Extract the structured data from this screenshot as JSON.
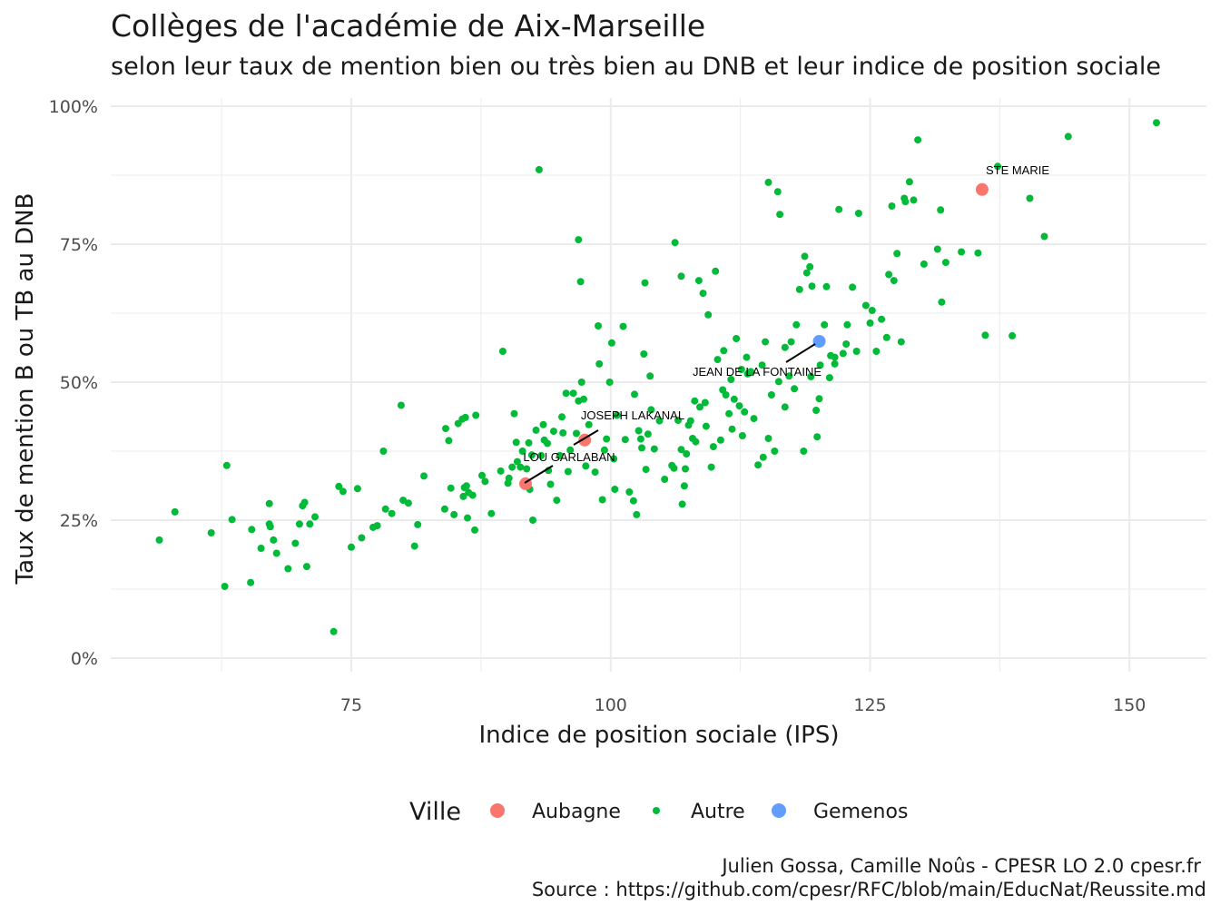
{
  "chart_data": {
    "type": "scatter",
    "title": "Collèges de l'académie de Aix-Marseille",
    "subtitle": "selon leur taux de mention bien ou très bien au DNB et leur indice de position sociale",
    "xlabel": "Indice de position sociale (IPS)",
    "ylabel": "Taux de mention B ou TB au DNB",
    "xlim": [
      52,
      160
    ],
    "ylim": [
      -0.03,
      1.03
    ],
    "x_ticks": [
      75,
      100,
      125,
      150
    ],
    "x_tick_labels": [
      "75",
      "100",
      "125",
      "150"
    ],
    "y_ticks": [
      0,
      0.25,
      0.5,
      0.75,
      1.0
    ],
    "y_tick_labels": [
      "0%",
      "25%",
      "50%",
      "75%",
      "100%"
    ],
    "grid": true,
    "legend_title": "Ville",
    "legend_position": "bottom",
    "caption_lines": [
      "Julien Gossa, Camille Noûs - CPESR LO 2.0 cpesr.fr",
      "Source : https://github.com/cpesr/RFC/blob/main/EducNat/Reussite.md"
    ],
    "series": [
      {
        "name": "Aubagne",
        "color": "#F8766D",
        "points": [
          [
            91.8,
            0.316
          ],
          [
            97.5,
            0.395
          ],
          [
            135.8,
            0.849
          ]
        ]
      },
      {
        "name": "Autre",
        "color": "#00BA38",
        "points": [
          [
            56.5,
            0.214
          ],
          [
            58,
            0.265
          ],
          [
            61.5,
            0.227
          ],
          [
            62.8,
            0.13
          ],
          [
            63,
            0.349
          ],
          [
            63.5,
            0.251
          ],
          [
            65.3,
            0.137
          ],
          [
            65.4,
            0.233
          ],
          [
            66.3,
            0.199
          ],
          [
            67.1,
            0.243
          ],
          [
            67.1,
            0.28
          ],
          [
            67.2,
            0.238
          ],
          [
            67.5,
            0.214
          ],
          [
            67.8,
            0.19
          ],
          [
            68.9,
            0.162
          ],
          [
            69.6,
            0.208
          ],
          [
            70,
            0.243
          ],
          [
            70.3,
            0.276
          ],
          [
            70.5,
            0.282
          ],
          [
            70.7,
            0.166
          ],
          [
            71,
            0.243
          ],
          [
            71.5,
            0.256
          ],
          [
            73.3,
            0.048
          ],
          [
            73.8,
            0.311
          ],
          [
            74.2,
            0.302
          ],
          [
            75,
            0.201
          ],
          [
            75.6,
            0.307
          ],
          [
            76,
            0.218
          ],
          [
            77.1,
            0.237
          ],
          [
            77.5,
            0.24
          ],
          [
            78.1,
            0.375
          ],
          [
            78.3,
            0.27
          ],
          [
            78.9,
            0.262
          ],
          [
            79.8,
            0.458
          ],
          [
            80,
            0.286
          ],
          [
            80.5,
            0.281
          ],
          [
            81.1,
            0.203
          ],
          [
            81.4,
            0.242
          ],
          [
            82,
            0.33
          ],
          [
            84,
            0.27
          ],
          [
            84.1,
            0.416
          ],
          [
            84.4,
            0.394
          ],
          [
            84.6,
            0.308
          ],
          [
            84.9,
            0.26
          ],
          [
            85.3,
            0.425
          ],
          [
            85.7,
            0.433
          ],
          [
            85.8,
            0.293
          ],
          [
            85.9,
            0.309
          ],
          [
            86,
            0.436
          ],
          [
            86.1,
            0.312
          ],
          [
            86.2,
            0.254
          ],
          [
            86.3,
            0.3
          ],
          [
            86.7,
            0.295
          ],
          [
            86.9,
            0.232
          ],
          [
            87,
            0.44
          ],
          [
            87.6,
            0.331
          ],
          [
            87.9,
            0.32
          ],
          [
            88.5,
            0.262
          ],
          [
            89.4,
            0.339
          ],
          [
            89.6,
            0.556
          ],
          [
            90.1,
            0.317
          ],
          [
            90.2,
            0.326
          ],
          [
            90.5,
            0.346
          ],
          [
            90.7,
            0.443
          ],
          [
            90.9,
            0.391
          ],
          [
            91.3,
            0.346
          ],
          [
            91.5,
            0.375
          ],
          [
            91.9,
            0.343
          ],
          [
            92.1,
            0.39
          ],
          [
            92.2,
            0.306
          ],
          [
            92.4,
            0.368
          ],
          [
            92.5,
            0.25
          ],
          [
            92.8,
            0.413
          ],
          [
            93.1,
            0.885
          ],
          [
            93.3,
            0.367
          ],
          [
            93.5,
            0.423
          ],
          [
            93.9,
            0.389
          ],
          [
            94.2,
            0.315
          ],
          [
            94.5,
            0.411
          ],
          [
            94.8,
            0.286
          ],
          [
            95.1,
            0.367
          ],
          [
            95.3,
            0.437
          ],
          [
            95.4,
            0.408
          ],
          [
            95.7,
            0.48
          ],
          [
            95.9,
            0.338
          ],
          [
            96.1,
            0.377
          ],
          [
            96.4,
            0.48
          ],
          [
            96.7,
            0.407
          ],
          [
            96.9,
            0.758
          ],
          [
            97.1,
            0.682
          ],
          [
            97.2,
            0.5
          ],
          [
            97.6,
            0.348
          ],
          [
            97.9,
            0.423
          ],
          [
            98.5,
            0.337
          ],
          [
            98.8,
            0.602
          ],
          [
            98.9,
            0.533
          ],
          [
            99.2,
            0.287
          ],
          [
            99.4,
            0.377
          ],
          [
            99.6,
            0.397
          ],
          [
            100.1,
            0.571
          ],
          [
            100.3,
            0.361
          ],
          [
            100.4,
            0.306
          ],
          [
            101.2,
            0.601
          ],
          [
            101.4,
            0.396
          ],
          [
            101.8,
            0.301
          ],
          [
            102.2,
            0.285
          ],
          [
            102.5,
            0.26
          ],
          [
            102.7,
            0.412
          ],
          [
            103,
            0.381
          ],
          [
            103.2,
            0.551
          ],
          [
            103.3,
            0.68
          ],
          [
            103.4,
            0.342
          ],
          [
            103.6,
            0.406
          ],
          [
            103.8,
            0.511
          ],
          [
            103.9,
            0.45
          ],
          [
            104.7,
            0.43
          ],
          [
            105.2,
            0.324
          ],
          [
            105.9,
            0.349
          ],
          [
            106.1,
            0.344
          ],
          [
            106.5,
            0.431
          ],
          [
            106.8,
            0.378
          ],
          [
            106.9,
            0.279
          ],
          [
            107.1,
            0.312
          ],
          [
            107.2,
            0.343
          ],
          [
            107.3,
            0.37
          ],
          [
            107.5,
            0.422
          ],
          [
            107.7,
            0.43
          ],
          [
            107.9,
            0.398
          ],
          [
            108.2,
            0.392
          ],
          [
            108.6,
            0.455
          ],
          [
            108.9,
            0.661
          ],
          [
            109.2,
            0.42
          ],
          [
            109.7,
            0.346
          ],
          [
            109.9,
            0.383
          ],
          [
            110.1,
            0.701
          ],
          [
            110.3,
            0.541
          ],
          [
            110.6,
            0.395
          ],
          [
            110.9,
            0.557
          ],
          [
            111.1,
            0.477
          ],
          [
            111.4,
            0.443
          ],
          [
            111.7,
            0.415
          ],
          [
            111.9,
            0.469
          ],
          [
            112.1,
            0.579
          ],
          [
            112.4,
            0.457
          ],
          [
            112.7,
            0.403
          ],
          [
            112.9,
            0.446
          ],
          [
            113.2,
            0.515
          ],
          [
            113.5,
            0.519
          ],
          [
            113.8,
            0.434
          ],
          [
            114.2,
            0.35
          ],
          [
            114.7,
            0.364
          ],
          [
            115.2,
            0.398
          ],
          [
            115.5,
            0.477
          ],
          [
            115.8,
            0.375
          ],
          [
            116.2,
            0.501
          ],
          [
            116.8,
            0.563
          ],
          [
            117.2,
            0.511
          ],
          [
            117.7,
            0.488
          ],
          [
            118.2,
            0.668
          ],
          [
            118.7,
            0.728
          ],
          [
            119.2,
            0.709
          ],
          [
            119.4,
            0.674
          ],
          [
            119.8,
            0.449
          ],
          [
            120.2,
            0.531
          ],
          [
            120.6,
            0.604
          ],
          [
            121.1,
            0.508
          ],
          [
            121.6,
            0.533
          ],
          [
            122,
            0.813
          ],
          [
            122.4,
            0.552
          ],
          [
            122.8,
            0.604
          ],
          [
            123.3,
            0.672
          ],
          [
            123.9,
            0.806
          ],
          [
            124.6,
            0.639
          ],
          [
            125,
            0.607
          ],
          [
            125.6,
            0.556
          ],
          [
            126.1,
            0.614
          ],
          [
            126.8,
            0.695
          ],
          [
            127.1,
            0.819
          ],
          [
            127.6,
            0.733
          ],
          [
            128,
            0.573
          ],
          [
            128.3,
            0.833
          ],
          [
            128.8,
            0.863
          ],
          [
            129.6,
            0.939
          ],
          [
            130.2,
            0.714
          ],
          [
            131.5,
            0.741
          ],
          [
            131.9,
            0.645
          ],
          [
            132.3,
            0.717
          ],
          [
            133.8,
            0.736
          ],
          [
            136.1,
            0.585
          ],
          [
            137.3,
            0.891
          ],
          [
            138.7,
            0.584
          ],
          [
            140.4,
            0.833
          ],
          [
            141.8,
            0.764
          ],
          [
            144.1,
            0.945
          ],
          [
            152.6,
            0.97
          ],
          [
            116.1,
            0.845
          ],
          [
            116.3,
            0.804
          ],
          [
            115.2,
            0.862
          ],
          [
            118.9,
            0.698
          ],
          [
            114.6,
            0.531
          ],
          [
            119.9,
            0.401
          ],
          [
            121.2,
            0.548
          ],
          [
            120.8,
            0.673
          ],
          [
            106.2,
            0.753
          ],
          [
            106.8,
            0.692
          ],
          [
            108.5,
            0.684
          ],
          [
            109.4,
            0.622
          ],
          [
            113.1,
            0.545
          ],
          [
            114.9,
            0.573
          ],
          [
            118.6,
            0.375
          ],
          [
            111.6,
            0.505
          ],
          [
            112.6,
            0.523
          ],
          [
            110.8,
            0.486
          ],
          [
            109.1,
            0.463
          ],
          [
            108.1,
            0.466
          ],
          [
            117.9,
            0.604
          ],
          [
            123.7,
            0.556
          ],
          [
            122.7,
            0.569
          ],
          [
            127.3,
            0.684
          ],
          [
            131.8,
            0.812
          ],
          [
            128.4,
            0.827
          ],
          [
            129.2,
            0.83
          ],
          [
            135.4,
            0.734
          ],
          [
            126.6,
            0.581
          ],
          [
            125.2,
            0.63
          ],
          [
            121.6,
            0.545
          ],
          [
            119.3,
            0.51
          ],
          [
            120.1,
            0.47
          ],
          [
            117.4,
            0.573
          ],
          [
            116.8,
            0.455
          ],
          [
            96.9,
            0.466
          ],
          [
            97.4,
            0.469
          ],
          [
            91.0,
            0.356
          ],
          [
            93.6,
            0.395
          ],
          [
            94.0,
            0.34
          ],
          [
            100.6,
            0.44
          ],
          [
            102.9,
            0.397
          ],
          [
            104.2,
            0.379
          ],
          [
            102.3,
            0.478
          ],
          [
            99.9,
            0.5
          ]
        ]
      },
      {
        "name": "Gemenos",
        "color": "#619CFF",
        "points": [
          [
            120.1,
            0.574
          ]
        ]
      }
    ],
    "annotations": [
      {
        "text": "STE MARIE"
      },
      {
        "text": "JEAN DE LA FONTAINE"
      },
      {
        "text": "JOSEPH LAKANAL"
      },
      {
        "text": "LOU GARLABAN"
      }
    ]
  }
}
